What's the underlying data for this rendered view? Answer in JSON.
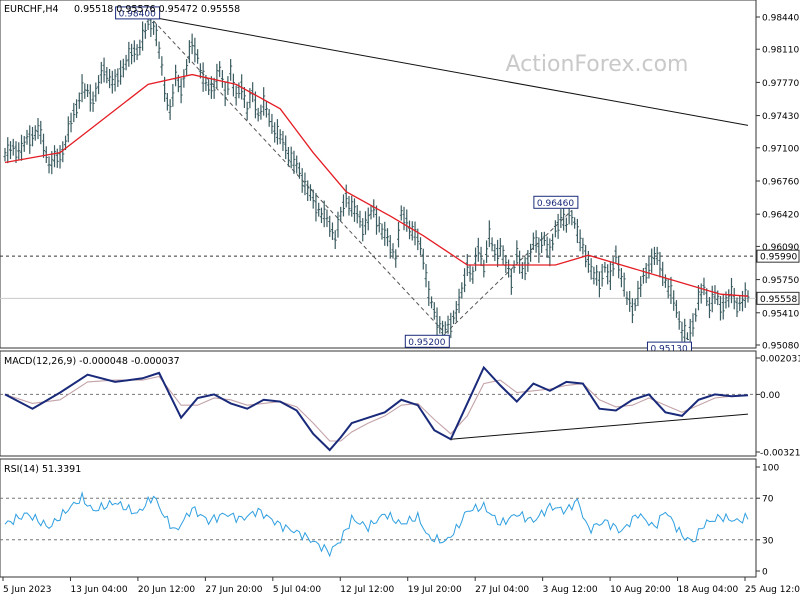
{
  "symbol_label": "EURCHF,H4",
  "ohlc_text": "0.95518 0.95576 0.95472 0.95558",
  "watermark": "ActionForex.com",
  "macd_label": "MACD(12,26,9) -0.000048 -0.000037",
  "rsi_label": "RSI(14) 51.3391",
  "colors": {
    "bars": "#3b5c61",
    "ma": "#e41e25",
    "macd": "#1a2a7a",
    "signal": "#c3a3a8",
    "rsi": "#2f9fe0",
    "grid": "#333333"
  },
  "chart_data": [
    {
      "type": "candlestick",
      "title": "EURCHF,H4",
      "ylim": [
        0.9508,
        0.9844
      ],
      "y_ticks": [
        "0.98440",
        "0.98110",
        "0.97770",
        "0.97430",
        "0.97100",
        "0.96760",
        "0.96420",
        "0.96090",
        "0.95750",
        "0.95410",
        "0.95080"
      ],
      "x_ticks": [
        "5 Jun 2023",
        "13 Jun 04:00",
        "20 Jun 12:00",
        "27 Jun 20:00",
        "5 Jul 04:00",
        "12 Jul 12:00",
        "19 Jul 20:00",
        "27 Jul 04:00",
        "3 Aug 12:00",
        "10 Aug 20:00",
        "18 Aug 04:00",
        "25 Aug 12:00"
      ],
      "price_path": [
        [
          0,
          0.9705
        ],
        [
          3,
          0.971
        ],
        [
          6,
          0.973
        ],
        [
          8,
          0.9695
        ],
        [
          10,
          0.97
        ],
        [
          12,
          0.9735
        ],
        [
          14,
          0.977
        ],
        [
          16,
          0.976
        ],
        [
          18,
          0.979
        ],
        [
          20,
          0.9775
        ],
        [
          22,
          0.98
        ],
        [
          24,
          0.981
        ],
        [
          26,
          0.9835
        ],
        [
          27,
          0.984
        ],
        [
          28,
          0.981
        ],
        [
          29,
          0.977
        ],
        [
          30,
          0.975
        ],
        [
          31,
          0.978
        ],
        [
          32,
          0.977
        ],
        [
          33,
          0.9795
        ],
        [
          34,
          0.9815
        ],
        [
          35,
          0.9805
        ],
        [
          36,
          0.978
        ],
        [
          37,
          0.977
        ],
        [
          38,
          0.9775
        ],
        [
          39,
          0.979
        ],
        [
          40,
          0.9765
        ],
        [
          41,
          0.979
        ],
        [
          42,
          0.976
        ],
        [
          43,
          0.9775
        ],
        [
          44,
          0.975
        ],
        [
          45,
          0.9765
        ],
        [
          46,
          0.9745
        ],
        [
          47,
          0.9755
        ],
        [
          48,
          0.974
        ],
        [
          50,
          0.972
        ],
        [
          52,
          0.97
        ],
        [
          54,
          0.968
        ],
        [
          56,
          0.9655
        ],
        [
          58,
          0.964
        ],
        [
          60,
          0.962
        ],
        [
          62,
          0.966
        ],
        [
          63,
          0.965
        ],
        [
          65,
          0.963
        ],
        [
          67,
          0.9645
        ],
        [
          69,
          0.962
        ],
        [
          71,
          0.96
        ],
        [
          72,
          0.964
        ],
        [
          73,
          0.9635
        ],
        [
          75,
          0.9615
        ],
        [
          76,
          0.96
        ],
        [
          77,
          0.956
        ],
        [
          78,
          0.954
        ],
        [
          79,
          0.953
        ],
        [
          80,
          0.952
        ],
        [
          81,
          0.953
        ],
        [
          82,
          0.9545
        ],
        [
          83,
          0.956
        ],
        [
          84,
          0.959
        ],
        [
          85,
          0.958
        ],
        [
          86,
          0.9605
        ],
        [
          87,
          0.959
        ],
        [
          88,
          0.962
        ],
        [
          89,
          0.96
        ],
        [
          90,
          0.961
        ],
        [
          91,
          0.959
        ],
        [
          92,
          0.9575
        ],
        [
          93,
          0.9605
        ],
        [
          94,
          0.958
        ],
        [
          95,
          0.9595
        ],
        [
          96,
          0.9615
        ],
        [
          97,
          0.9605
        ],
        [
          98,
          0.962
        ],
        [
          99,
          0.96
        ],
        [
          100,
          0.9625
        ],
        [
          101,
          0.964
        ],
        [
          102,
          0.963
        ],
        [
          103,
          0.9646
        ],
        [
          104,
          0.9625
        ],
        [
          105,
          0.9605
        ],
        [
          106,
          0.9595
        ],
        [
          107,
          0.958
        ],
        [
          108,
          0.957
        ],
        [
          109,
          0.959
        ],
        [
          110,
          0.9575
        ],
        [
          111,
          0.96
        ],
        [
          112,
          0.958
        ],
        [
          113,
          0.9555
        ],
        [
          114,
          0.9545
        ],
        [
          115,
          0.956
        ],
        [
          116,
          0.9575
        ],
        [
          117,
          0.959
        ],
        [
          118,
          0.96
        ],
        [
          119,
          0.959
        ],
        [
          120,
          0.9575
        ],
        [
          121,
          0.956
        ],
        [
          122,
          0.9545
        ],
        [
          123,
          0.9525
        ],
        [
          124,
          0.9513
        ],
        [
          125,
          0.953
        ],
        [
          126,
          0.9555
        ],
        [
          127,
          0.9565
        ],
        [
          128,
          0.955
        ],
        [
          129,
          0.956
        ],
        [
          130,
          0.9545
        ],
        [
          131,
          0.9555
        ],
        [
          132,
          0.956
        ],
        [
          133,
          0.9548
        ],
        [
          134,
          0.9556
        ],
        [
          135,
          0.9556
        ]
      ],
      "moving_average": [
        [
          0,
          0.9695
        ],
        [
          10,
          0.9705
        ],
        [
          18,
          0.974
        ],
        [
          26,
          0.9775
        ],
        [
          34,
          0.9785
        ],
        [
          42,
          0.9775
        ],
        [
          50,
          0.975
        ],
        [
          56,
          0.9705
        ],
        [
          62,
          0.9665
        ],
        [
          70,
          0.964
        ],
        [
          76,
          0.962
        ],
        [
          80,
          0.9605
        ],
        [
          84,
          0.959
        ],
        [
          88,
          0.959
        ],
        [
          94,
          0.959
        ],
        [
          100,
          0.959
        ],
        [
          106,
          0.96
        ],
        [
          112,
          0.959
        ],
        [
          118,
          0.958
        ],
        [
          124,
          0.957
        ],
        [
          130,
          0.956
        ],
        [
          135,
          0.9558
        ]
      ],
      "trendline": [
        [
          26,
          0.98445
        ],
        [
          135,
          0.9733
        ]
      ],
      "swing_line": [
        [
          27,
          0.984
        ],
        [
          80,
          0.952
        ],
        [
          103,
          0.9646
        ]
      ],
      "resistance_level": 0.9599,
      "resistance_label": "0.95990",
      "current_price": 0.95558,
      "current_price_label": "0.95558",
      "annotations": [
        {
          "label": "0.98400",
          "x": 27,
          "y": 0.984,
          "placement": "above"
        },
        {
          "label": "0.95200",
          "x": 80,
          "y": 0.952,
          "placement": "below"
        },
        {
          "label": "0.96460",
          "x": 103,
          "y": 0.9646,
          "placement": "above"
        },
        {
          "label": "0.95130",
          "x": 124,
          "y": 0.9513,
          "placement": "below"
        }
      ]
    },
    {
      "type": "line",
      "title": "MACD(12,26,9) -0.000048 -0.000037",
      "ylim": [
        -0.003214,
        0.002031
      ],
      "y_ticks": [
        "0.002031",
        "0.00",
        "-0.003214"
      ],
      "zero_label": "0.00",
      "series": [
        {
          "name": "MACD",
          "values": [
            [
              0,
              0.0
            ],
            [
              5,
              -0.0008
            ],
            [
              10,
              0.0001
            ],
            [
              15,
              0.0011
            ],
            [
              20,
              0.0007
            ],
            [
              25,
              0.0009
            ],
            [
              28,
              0.0012
            ],
            [
              32,
              -0.0013
            ],
            [
              35,
              -0.0002
            ],
            [
              38,
              0.0
            ],
            [
              41,
              -0.0005
            ],
            [
              44,
              -0.0008
            ],
            [
              47,
              -0.0003
            ],
            [
              50,
              -0.0004
            ],
            [
              53,
              -0.0009
            ],
            [
              56,
              -0.0022
            ],
            [
              59,
              -0.0031
            ],
            [
              61,
              -0.0024
            ],
            [
              63,
              -0.0016
            ],
            [
              66,
              -0.0013
            ],
            [
              69,
              -0.001
            ],
            [
              72,
              -0.0003
            ],
            [
              75,
              -0.0006
            ],
            [
              78,
              -0.002
            ],
            [
              81,
              -0.0025
            ],
            [
              84,
              -0.0005
            ],
            [
              87,
              0.0015
            ],
            [
              90,
              0.0005
            ],
            [
              93,
              -0.0004
            ],
            [
              96,
              0.0006
            ],
            [
              99,
              0.0002
            ],
            [
              102,
              0.0007
            ],
            [
              105,
              0.0006
            ],
            [
              108,
              -0.0008
            ],
            [
              111,
              -0.0009
            ],
            [
              114,
              -0.0003
            ],
            [
              117,
              0.0
            ],
            [
              120,
              -0.001
            ],
            [
              123,
              -0.0012
            ],
            [
              126,
              -0.0003
            ],
            [
              129,
              0.0
            ],
            [
              132,
              -0.0001
            ],
            [
              135,
              -4.8e-05
            ]
          ]
        },
        {
          "name": "Signal",
          "values": [
            [
              0,
              0.0
            ],
            [
              5,
              -0.0005
            ],
            [
              10,
              -0.0003
            ],
            [
              15,
              0.0007
            ],
            [
              20,
              0.0008
            ],
            [
              25,
              0.0008
            ],
            [
              28,
              0.001
            ],
            [
              32,
              -0.0006
            ],
            [
              35,
              -0.0006
            ],
            [
              38,
              -0.0002
            ],
            [
              41,
              -0.0003
            ],
            [
              44,
              -0.0006
            ],
            [
              47,
              -0.0005
            ],
            [
              50,
              -0.0004
            ],
            [
              53,
              -0.0007
            ],
            [
              56,
              -0.0016
            ],
            [
              59,
              -0.0026
            ],
            [
              61,
              -0.0026
            ],
            [
              63,
              -0.0021
            ],
            [
              66,
              -0.0016
            ],
            [
              69,
              -0.0012
            ],
            [
              72,
              -0.0006
            ],
            [
              75,
              -0.0005
            ],
            [
              78,
              -0.0014
            ],
            [
              81,
              -0.0022
            ],
            [
              84,
              -0.0012
            ],
            [
              87,
              0.0006
            ],
            [
              90,
              0.0008
            ],
            [
              93,
              0.0001
            ],
            [
              96,
              0.0002
            ],
            [
              99,
              0.0003
            ],
            [
              102,
              0.0005
            ],
            [
              105,
              0.0006
            ],
            [
              108,
              -0.0003
            ],
            [
              111,
              -0.0007
            ],
            [
              114,
              -0.0006
            ],
            [
              117,
              -0.0002
            ],
            [
              120,
              -0.0006
            ],
            [
              123,
              -0.001
            ],
            [
              126,
              -0.0006
            ],
            [
              129,
              -0.0002
            ],
            [
              132,
              -0.0001
            ],
            [
              135,
              -3.7e-05
            ]
          ]
        }
      ],
      "trendline": [
        [
          81,
          -0.0025
        ],
        [
          135,
          -0.0011
        ]
      ]
    },
    {
      "type": "line",
      "title": "RSI(14) 51.3391",
      "ylim": [
        0,
        100
      ],
      "y_ticks": [
        "100",
        "70",
        "30",
        "0"
      ],
      "levels": [
        70,
        30
      ],
      "series": [
        {
          "name": "RSI(14)",
          "values": [
            [
              0,
              45
            ],
            [
              4,
              55
            ],
            [
              8,
              42
            ],
            [
              12,
              62
            ],
            [
              14,
              70
            ],
            [
              16,
              58
            ],
            [
              20,
              66
            ],
            [
              24,
              55
            ],
            [
              27,
              72
            ],
            [
              29,
              52
            ],
            [
              31,
              38
            ],
            [
              34,
              60
            ],
            [
              37,
              48
            ],
            [
              40,
              55
            ],
            [
              43,
              50
            ],
            [
              46,
              58
            ],
            [
              50,
              44
            ],
            [
              54,
              35
            ],
            [
              57,
              25
            ],
            [
              59,
              18
            ],
            [
              61,
              30
            ],
            [
              63,
              50
            ],
            [
              66,
              42
            ],
            [
              69,
              55
            ],
            [
              72,
              45
            ],
            [
              75,
              52
            ],
            [
              77,
              32
            ],
            [
              80,
              28
            ],
            [
              82,
              40
            ],
            [
              84,
              58
            ],
            [
              87,
              62
            ],
            [
              90,
              45
            ],
            [
              93,
              55
            ],
            [
              96,
              48
            ],
            [
              99,
              62
            ],
            [
              102,
              58
            ],
            [
              104,
              68
            ],
            [
              106,
              40
            ],
            [
              109,
              48
            ],
            [
              112,
              38
            ],
            [
              115,
              55
            ],
            [
              118,
              42
            ],
            [
              120,
              58
            ],
            [
              123,
              34
            ],
            [
              125,
              28
            ],
            [
              127,
              45
            ],
            [
              130,
              52
            ],
            [
              133,
              48
            ],
            [
              135,
              51.34
            ]
          ]
        }
      ]
    }
  ]
}
